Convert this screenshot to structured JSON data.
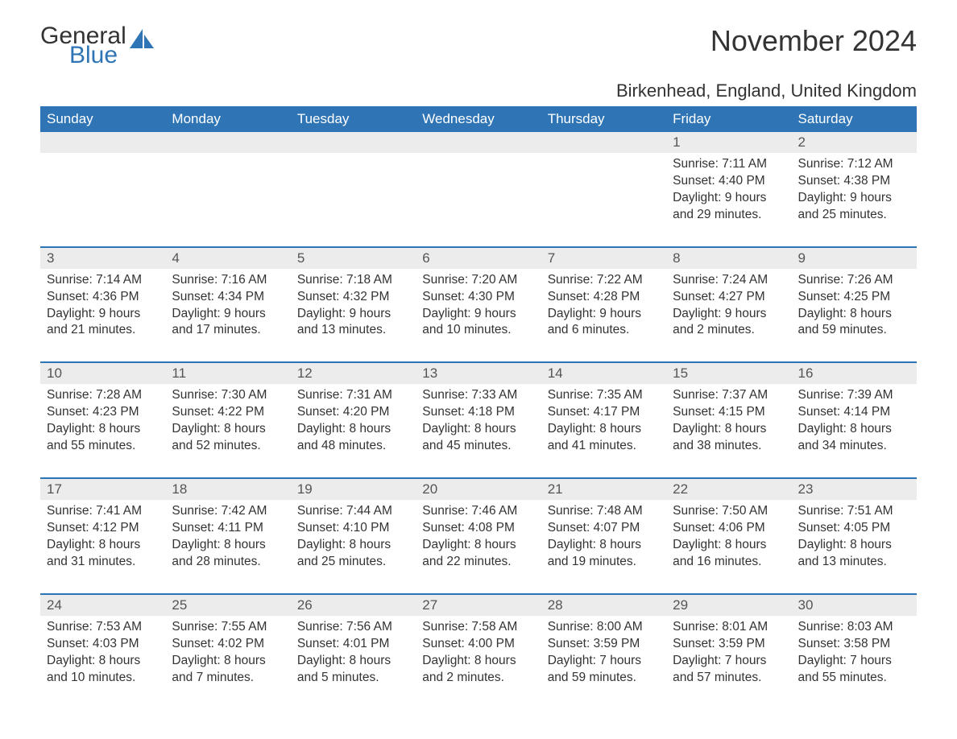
{
  "logo": {
    "word1": "General",
    "word2": "Blue"
  },
  "header": {
    "month_title": "November 2024",
    "location": "Birkenhead, England, United Kingdom"
  },
  "colors": {
    "header_bg": "#2f75b5",
    "header_text": "#ffffff",
    "daynum_bg": "#ececec",
    "text": "#333333",
    "accent": "#2f75b5"
  },
  "day_names": [
    "Sunday",
    "Monday",
    "Tuesday",
    "Wednesday",
    "Thursday",
    "Friday",
    "Saturday"
  ],
  "labels": {
    "sunrise": "Sunrise:",
    "sunset": "Sunset:",
    "daylight": "Daylight:"
  },
  "weeks": [
    [
      null,
      null,
      null,
      null,
      null,
      {
        "d": "1",
        "sunrise": "7:11 AM",
        "sunset": "4:40 PM",
        "daylight": "9 hours and 29 minutes."
      },
      {
        "d": "2",
        "sunrise": "7:12 AM",
        "sunset": "4:38 PM",
        "daylight": "9 hours and 25 minutes."
      }
    ],
    [
      {
        "d": "3",
        "sunrise": "7:14 AM",
        "sunset": "4:36 PM",
        "daylight": "9 hours and 21 minutes."
      },
      {
        "d": "4",
        "sunrise": "7:16 AM",
        "sunset": "4:34 PM",
        "daylight": "9 hours and 17 minutes."
      },
      {
        "d": "5",
        "sunrise": "7:18 AM",
        "sunset": "4:32 PM",
        "daylight": "9 hours and 13 minutes."
      },
      {
        "d": "6",
        "sunrise": "7:20 AM",
        "sunset": "4:30 PM",
        "daylight": "9 hours and 10 minutes."
      },
      {
        "d": "7",
        "sunrise": "7:22 AM",
        "sunset": "4:28 PM",
        "daylight": "9 hours and 6 minutes."
      },
      {
        "d": "8",
        "sunrise": "7:24 AM",
        "sunset": "4:27 PM",
        "daylight": "9 hours and 2 minutes."
      },
      {
        "d": "9",
        "sunrise": "7:26 AM",
        "sunset": "4:25 PM",
        "daylight": "8 hours and 59 minutes."
      }
    ],
    [
      {
        "d": "10",
        "sunrise": "7:28 AM",
        "sunset": "4:23 PM",
        "daylight": "8 hours and 55 minutes."
      },
      {
        "d": "11",
        "sunrise": "7:30 AM",
        "sunset": "4:22 PM",
        "daylight": "8 hours and 52 minutes."
      },
      {
        "d": "12",
        "sunrise": "7:31 AM",
        "sunset": "4:20 PM",
        "daylight": "8 hours and 48 minutes."
      },
      {
        "d": "13",
        "sunrise": "7:33 AM",
        "sunset": "4:18 PM",
        "daylight": "8 hours and 45 minutes."
      },
      {
        "d": "14",
        "sunrise": "7:35 AM",
        "sunset": "4:17 PM",
        "daylight": "8 hours and 41 minutes."
      },
      {
        "d": "15",
        "sunrise": "7:37 AM",
        "sunset": "4:15 PM",
        "daylight": "8 hours and 38 minutes."
      },
      {
        "d": "16",
        "sunrise": "7:39 AM",
        "sunset": "4:14 PM",
        "daylight": "8 hours and 34 minutes."
      }
    ],
    [
      {
        "d": "17",
        "sunrise": "7:41 AM",
        "sunset": "4:12 PM",
        "daylight": "8 hours and 31 minutes."
      },
      {
        "d": "18",
        "sunrise": "7:42 AM",
        "sunset": "4:11 PM",
        "daylight": "8 hours and 28 minutes."
      },
      {
        "d": "19",
        "sunrise": "7:44 AM",
        "sunset": "4:10 PM",
        "daylight": "8 hours and 25 minutes."
      },
      {
        "d": "20",
        "sunrise": "7:46 AM",
        "sunset": "4:08 PM",
        "daylight": "8 hours and 22 minutes."
      },
      {
        "d": "21",
        "sunrise": "7:48 AM",
        "sunset": "4:07 PM",
        "daylight": "8 hours and 19 minutes."
      },
      {
        "d": "22",
        "sunrise": "7:50 AM",
        "sunset": "4:06 PM",
        "daylight": "8 hours and 16 minutes."
      },
      {
        "d": "23",
        "sunrise": "7:51 AM",
        "sunset": "4:05 PM",
        "daylight": "8 hours and 13 minutes."
      }
    ],
    [
      {
        "d": "24",
        "sunrise": "7:53 AM",
        "sunset": "4:03 PM",
        "daylight": "8 hours and 10 minutes."
      },
      {
        "d": "25",
        "sunrise": "7:55 AM",
        "sunset": "4:02 PM",
        "daylight": "8 hours and 7 minutes."
      },
      {
        "d": "26",
        "sunrise": "7:56 AM",
        "sunset": "4:01 PM",
        "daylight": "8 hours and 5 minutes."
      },
      {
        "d": "27",
        "sunrise": "7:58 AM",
        "sunset": "4:00 PM",
        "daylight": "8 hours and 2 minutes."
      },
      {
        "d": "28",
        "sunrise": "8:00 AM",
        "sunset": "3:59 PM",
        "daylight": "7 hours and 59 minutes."
      },
      {
        "d": "29",
        "sunrise": "8:01 AM",
        "sunset": "3:59 PM",
        "daylight": "7 hours and 57 minutes."
      },
      {
        "d": "30",
        "sunrise": "8:03 AM",
        "sunset": "3:58 PM",
        "daylight": "7 hours and 55 minutes."
      }
    ]
  ]
}
